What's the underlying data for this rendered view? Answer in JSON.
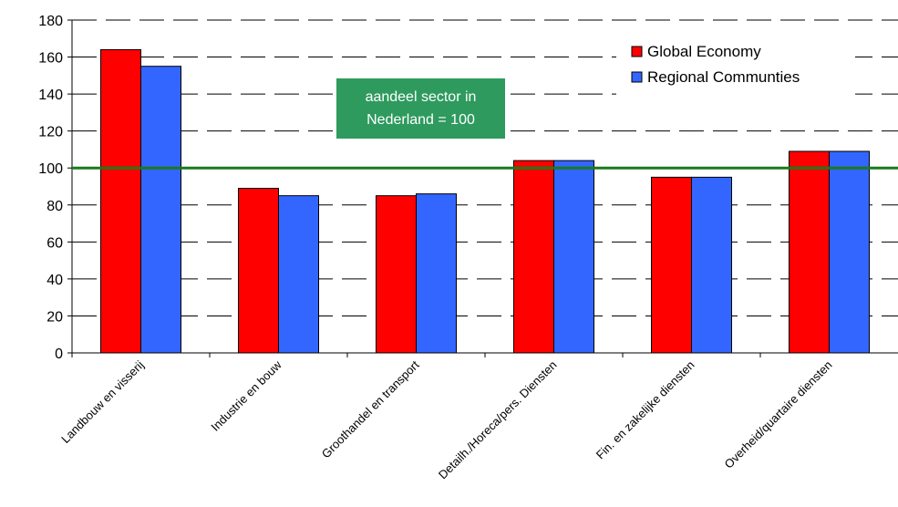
{
  "chart_data": {
    "type": "bar",
    "categories": [
      "Landbouw en visserij",
      "Industrie en bouw",
      "Groothandel en transport",
      "Detailh./Horeca/pers. Diensten",
      "Fin. en zakelijke diensten",
      "Overheid/quartaire diensten"
    ],
    "series": [
      {
        "name": "Global Economy",
        "color": "#ff0000",
        "values": [
          164,
          89,
          85,
          104,
          95,
          109
        ]
      },
      {
        "name": "Regional Communties",
        "color": "#3366ff",
        "values": [
          155,
          85,
          86,
          104,
          95,
          109
        ]
      }
    ],
    "ylim": [
      0,
      180
    ],
    "yticks": [
      0,
      20,
      40,
      60,
      80,
      100,
      120,
      140,
      160,
      180
    ],
    "reference_line": {
      "value": 100,
      "color": "#1a7a1a"
    },
    "annotation": {
      "lines": [
        "aandeel sector in",
        "Nederland = 100"
      ],
      "color": "#2e9a5e"
    },
    "grid": "dashed horizontal",
    "legend_position": "top-right"
  }
}
